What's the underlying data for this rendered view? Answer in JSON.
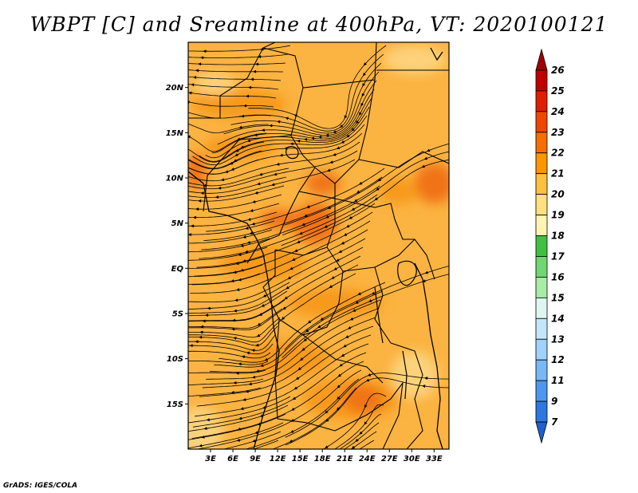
{
  "title": "WBPT [C] and Sreamline at 400hPa, VT: 2020100121",
  "lat_labels": [
    "20N",
    "15N",
    "10N",
    "5N",
    "EQ",
    "5S",
    "10S",
    "15S"
  ],
  "lat_values": [
    20,
    15,
    10,
    5,
    0,
    -5,
    -10,
    -15
  ],
  "lon_labels": [
    "3E",
    "6E",
    "9E",
    "12E",
    "15E",
    "18E",
    "21E",
    "24E",
    "27E",
    "30E",
    "33E"
  ],
  "lon_values": [
    3,
    6,
    9,
    12,
    15,
    18,
    21,
    24,
    27,
    30,
    33
  ],
  "map_extent": {
    "lon_min": 0,
    "lon_max": 35,
    "lat_min": -20,
    "lat_max": 25
  },
  "colorbar": {
    "labels": [
      "26",
      "25",
      "24",
      "23",
      "22",
      "21",
      "20",
      "19",
      "18",
      "17",
      "16",
      "15",
      "14",
      "13",
      "12",
      "11",
      "9",
      "7"
    ],
    "colors": [
      "#a00000",
      "#c00000",
      "#e01e00",
      "#f04600",
      "#f56e00",
      "#fa9600",
      "#fdc040",
      "#ffe080",
      "#fff4b0",
      "#40c040",
      "#70d870",
      "#a8eca8",
      "#dff6f0",
      "#c4e6fb",
      "#a0d2fa",
      "#78b8f5",
      "#4c98ec",
      "#2c78e0",
      "#1e60d0"
    ]
  },
  "field_colors": {
    "base": "#fbb341",
    "warm": "#f79a1e",
    "hot": "#f07318",
    "cool": "#fdd27a"
  },
  "credit": "GrADS: IGES/COLA"
}
